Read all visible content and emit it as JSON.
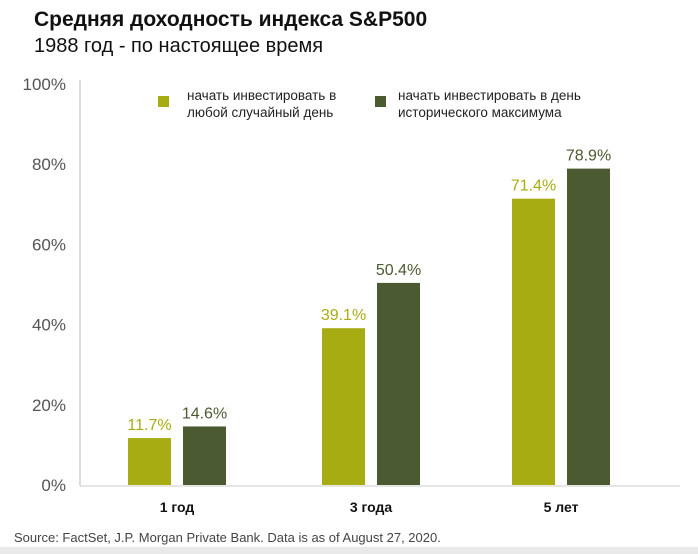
{
  "header": {
    "title": "Средняя доходность индекса S&P500",
    "subtitle": "1988 год - по настоящее время"
  },
  "chart_data": {
    "type": "bar",
    "categories": [
      "1 год",
      "3 года",
      "5 лет"
    ],
    "series": [
      {
        "name": "начать инвестировать в любой случайный день",
        "values": [
          11.7,
          39.1,
          71.4
        ],
        "color": "#a8ac13",
        "label_color": "#a8ac13"
      },
      {
        "name": "начать инвестировать в день исторического максимума",
        "values": [
          14.6,
          50.4,
          78.9
        ],
        "color": "#4b5a30",
        "label_color": "#4b5a30"
      }
    ],
    "data_labels": [
      [
        "11.7%",
        "39.1%",
        "71.4%"
      ],
      [
        "14.6%",
        "50.4%",
        "78.9%"
      ]
    ],
    "legend": [
      {
        "lines": [
          "начать инвестировать в",
          "любой случайный день"
        ]
      },
      {
        "lines": [
          "начать инвестировать в день",
          "исторического максимума"
        ]
      }
    ],
    "ylim": [
      0,
      100
    ],
    "yticks": [
      0,
      20,
      40,
      60,
      80,
      100
    ],
    "ytick_labels": [
      "0%",
      "20%",
      "40%",
      "60%",
      "80%",
      "100%"
    ],
    "title": "Средняя доходность индекса S&P500",
    "xlabel": "",
    "ylabel": ""
  },
  "footer": {
    "source": "Source: FactSet, J.P. Morgan Private Bank. Data is as of August 27, 2020."
  }
}
